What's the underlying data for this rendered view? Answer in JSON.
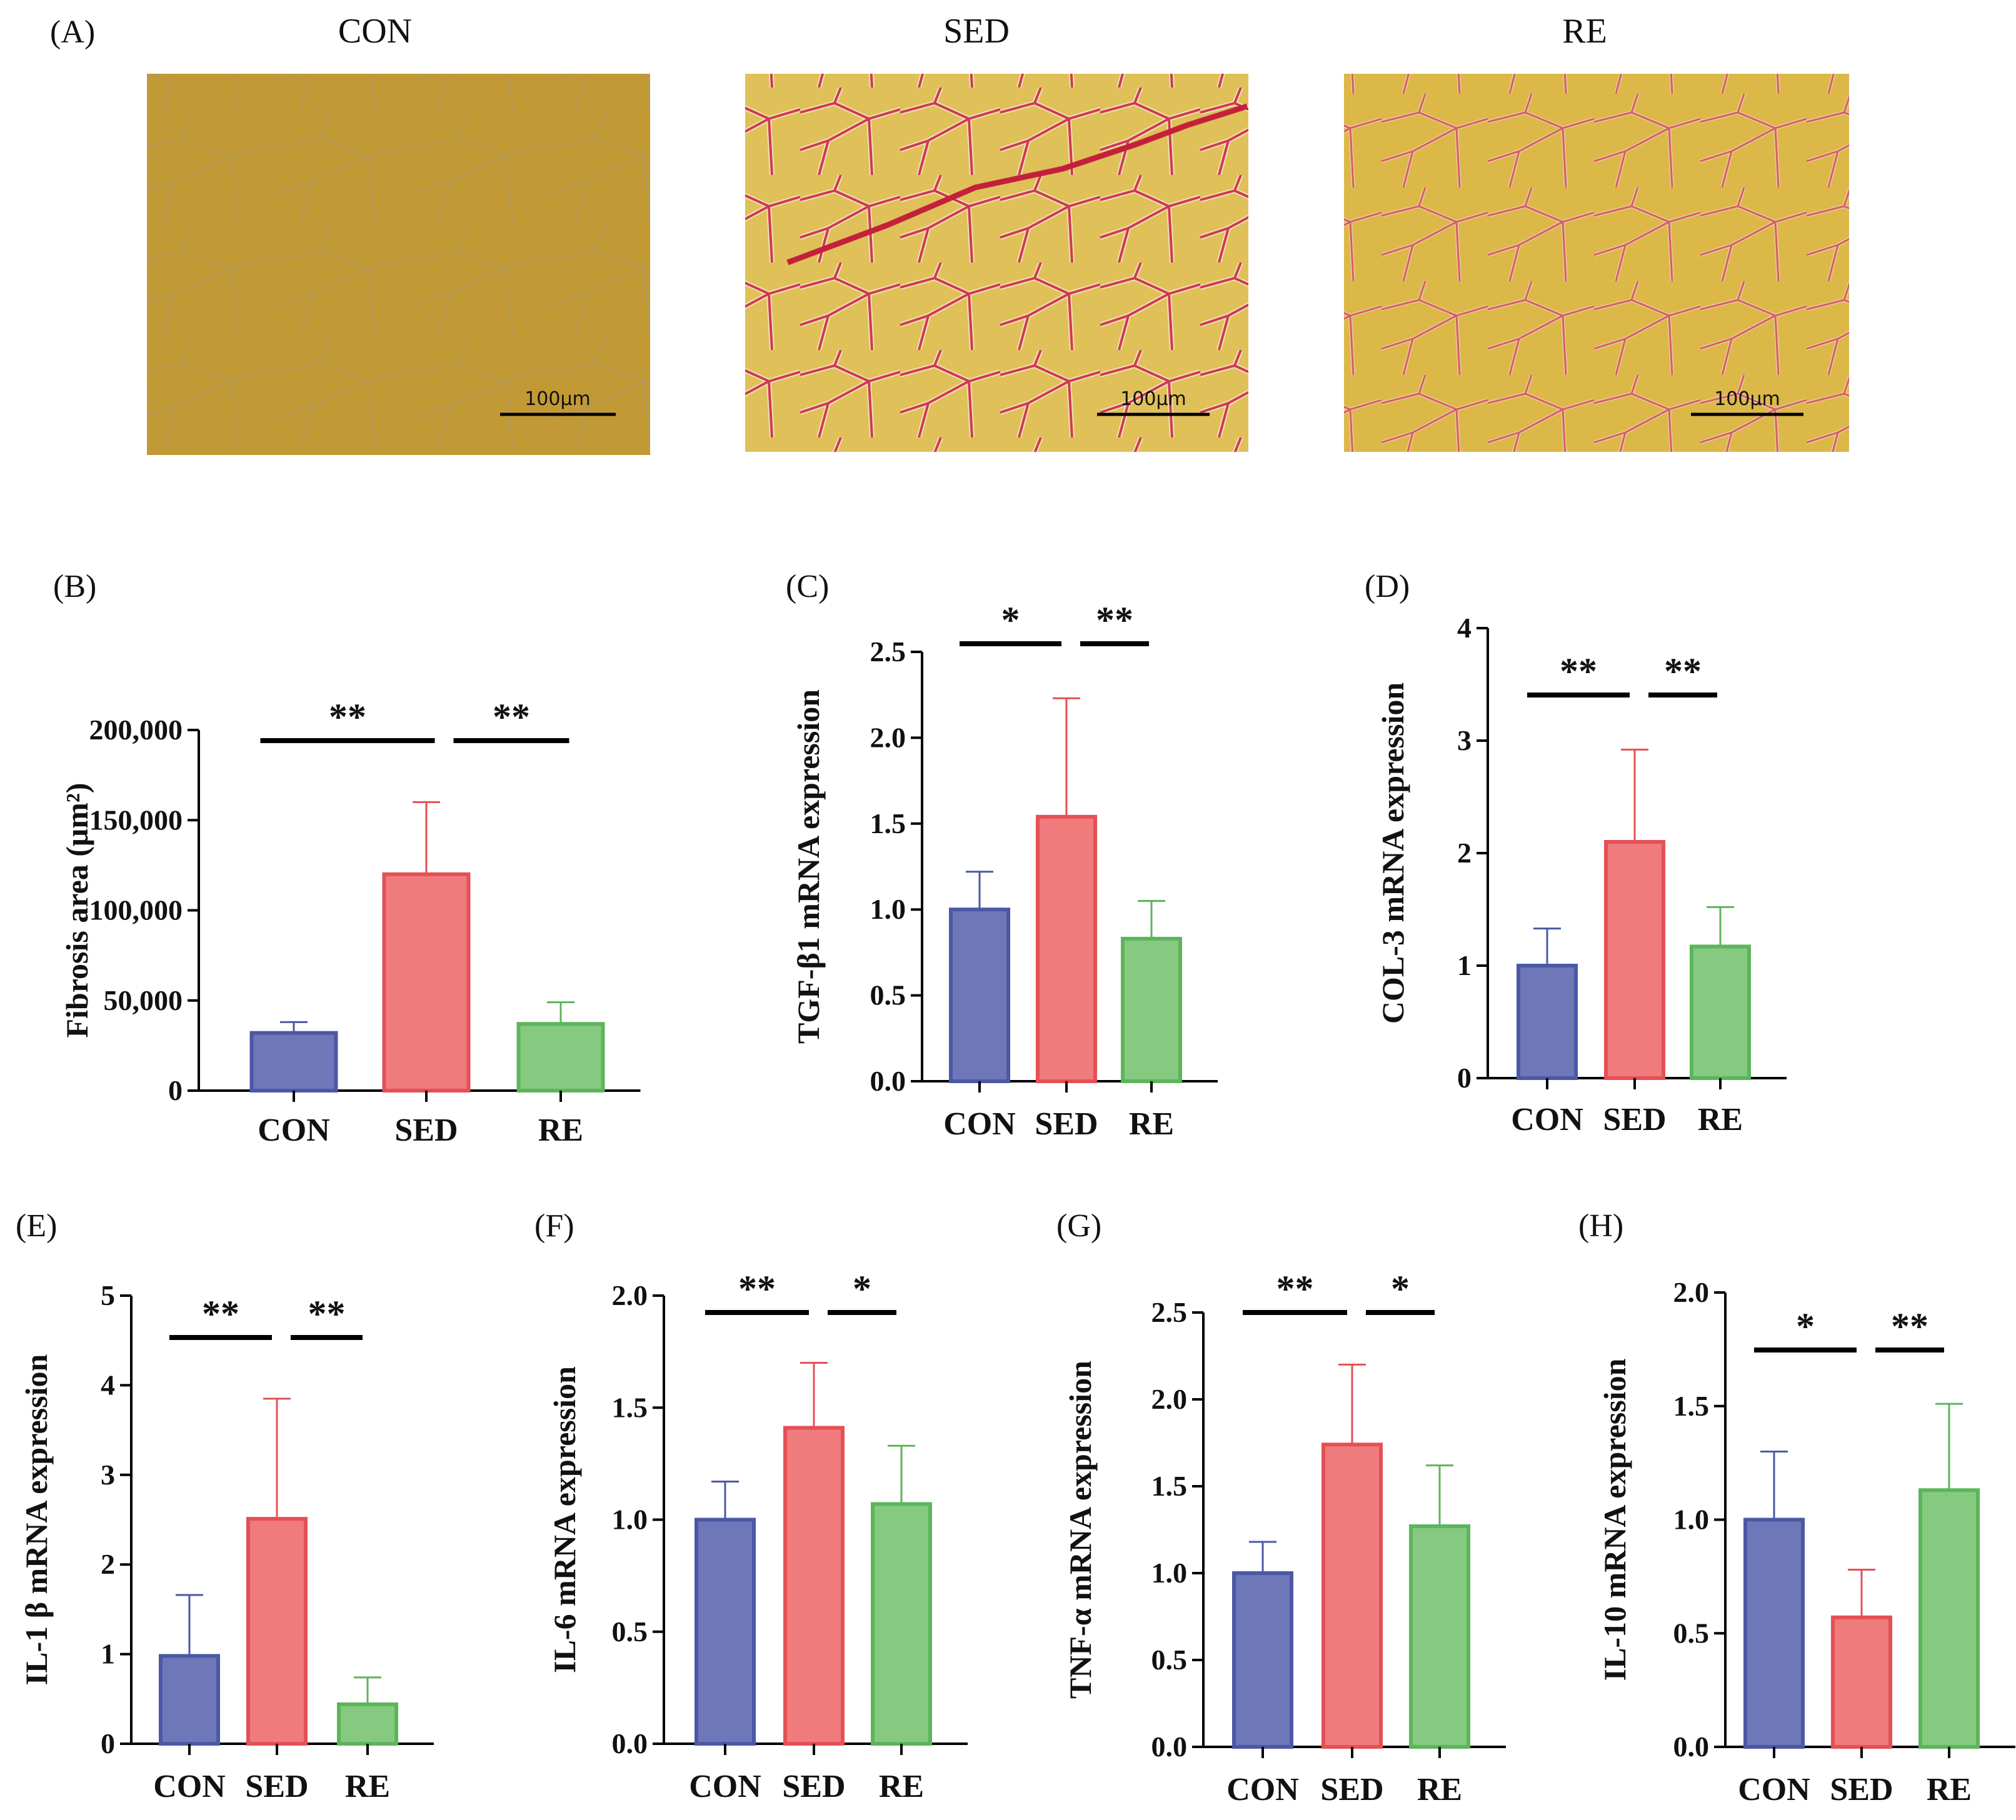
{
  "colors": {
    "CON": {
      "fill": "#6e78b8",
      "stroke": "#4b58a6"
    },
    "SED": {
      "fill": "#ef7b7d",
      "stroke": "#e45055"
    },
    "RE": {
      "fill": "#86c981",
      "stroke": "#5cb55a"
    }
  },
  "micrographs": {
    "label": "(A)",
    "panels": [
      {
        "title": "CON",
        "scale_bar": "100μm",
        "stain": "none"
      },
      {
        "title": "SED",
        "scale_bar": "100μm",
        "stain": "heavy"
      },
      {
        "title": "RE",
        "scale_bar": "100μm",
        "stain": "moderate"
      }
    ]
  },
  "chart_data": [
    {
      "label": "(B)",
      "type": "bar",
      "ylabel": "Fibrosis area (μm²)",
      "categories": [
        "CON",
        "SED",
        "RE"
      ],
      "values": [
        32000,
        120000,
        37000
      ],
      "error_upper": [
        38000,
        160000,
        49000
      ],
      "ylim": [
        0,
        200000
      ],
      "ticks": [
        0,
        50000,
        100000,
        150000,
        200000
      ],
      "tick_labels": [
        "0",
        "50,000",
        "100,000",
        "150,000",
        "200,000"
      ],
      "significance": [
        {
          "pair": [
            0,
            1
          ],
          "text": "**"
        },
        {
          "pair": [
            1,
            2
          ],
          "text": "**"
        }
      ]
    },
    {
      "label": "(C)",
      "type": "bar",
      "ylabel": "TGF-β1 mRNA expression",
      "categories": [
        "CON",
        "SED",
        "RE"
      ],
      "values": [
        1.0,
        1.54,
        0.83
      ],
      "error_upper": [
        1.22,
        2.23,
        1.05
      ],
      "ylim": [
        0,
        2.5
      ],
      "ticks": [
        0,
        0.5,
        1.0,
        1.5,
        2.0,
        2.5
      ],
      "tick_labels": [
        "0.0",
        "0.5",
        "1.0",
        "1.5",
        "2.0",
        "2.5"
      ],
      "significance": [
        {
          "pair": [
            0,
            1
          ],
          "text": "*"
        },
        {
          "pair": [
            1,
            2
          ],
          "text": "**"
        }
      ]
    },
    {
      "label": "(D)",
      "type": "bar",
      "ylabel": "COL-3 mRNA expression",
      "categories": [
        "CON",
        "SED",
        "RE"
      ],
      "values": [
        1.0,
        2.1,
        1.17
      ],
      "error_upper": [
        1.33,
        2.92,
        1.52
      ],
      "ylim": [
        0,
        4
      ],
      "ticks": [
        0,
        1,
        2,
        3,
        4
      ],
      "tick_labels": [
        "0",
        "1",
        "2",
        "3",
        "4"
      ],
      "significance": [
        {
          "pair": [
            0,
            1
          ],
          "text": "**"
        },
        {
          "pair": [
            1,
            2
          ],
          "text": "**"
        }
      ]
    },
    {
      "label": "(E)",
      "type": "bar",
      "ylabel": "IL-1 β mRNA expression",
      "categories": [
        "CON",
        "SED",
        "RE"
      ],
      "values": [
        0.98,
        2.51,
        0.44
      ],
      "error_upper": [
        1.66,
        3.85,
        0.74
      ],
      "ylim": [
        0,
        5
      ],
      "ticks": [
        0,
        1,
        2,
        3,
        4,
        5
      ],
      "tick_labels": [
        "0",
        "1",
        "2",
        "3",
        "4",
        "5"
      ],
      "significance": [
        {
          "pair": [
            0,
            1
          ],
          "text": "**"
        },
        {
          "pair": [
            1,
            2
          ],
          "text": "**"
        }
      ]
    },
    {
      "label": "(F)",
      "type": "bar",
      "ylabel": "IL-6 mRNA expression",
      "categories": [
        "CON",
        "SED",
        "RE"
      ],
      "values": [
        1.0,
        1.41,
        1.07
      ],
      "error_upper": [
        1.17,
        1.7,
        1.33
      ],
      "ylim": [
        0,
        2.0
      ],
      "ticks": [
        0,
        0.5,
        1.0,
        1.5,
        2.0
      ],
      "tick_labels": [
        "0.0",
        "0.5",
        "1.0",
        "1.5",
        "2.0"
      ],
      "significance": [
        {
          "pair": [
            0,
            1
          ],
          "text": "**"
        },
        {
          "pair": [
            1,
            2
          ],
          "text": "*"
        }
      ]
    },
    {
      "label": "(G)",
      "type": "bar",
      "ylabel": "TNF-α mRNA expression",
      "categories": [
        "CON",
        "SED",
        "RE"
      ],
      "values": [
        1.0,
        1.74,
        1.27
      ],
      "error_upper": [
        1.18,
        2.2,
        1.62
      ],
      "ylim": [
        0,
        2.5
      ],
      "ticks": [
        0,
        0.5,
        1.0,
        1.5,
        2.0,
        2.5
      ],
      "tick_labels": [
        "0.0",
        "0.5",
        "1.0",
        "1.5",
        "2.0",
        "2.5"
      ],
      "significance": [
        {
          "pair": [
            0,
            1
          ],
          "text": "**"
        },
        {
          "pair": [
            1,
            2
          ],
          "text": "*"
        }
      ]
    },
    {
      "label": "(H)",
      "type": "bar",
      "ylabel": "IL-10 mRNA expression",
      "categories": [
        "CON",
        "SED",
        "RE"
      ],
      "values": [
        1.0,
        0.57,
        1.13
      ],
      "error_upper": [
        1.3,
        0.78,
        1.51
      ],
      "ylim": [
        0,
        2.0
      ],
      "ticks": [
        0,
        0.5,
        1.0,
        1.5,
        2.0
      ],
      "tick_labels": [
        "0.0",
        "0.5",
        "1.0",
        "1.5",
        "2.0"
      ],
      "significance": [
        {
          "pair": [
            0,
            1
          ],
          "text": "*"
        },
        {
          "pair": [
            1,
            2
          ],
          "text": "**"
        }
      ]
    }
  ]
}
